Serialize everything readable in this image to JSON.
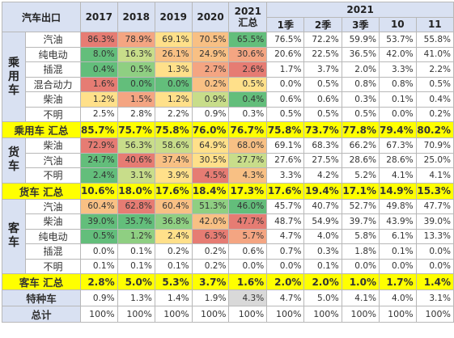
{
  "header": {
    "corner": "汽车出口",
    "years": [
      "2017",
      "2018",
      "2019",
      "2020"
    ],
    "summary_top": "2021",
    "summary_bottom": "汇总",
    "group_2021": "2021",
    "periods": [
      "1季",
      "2季",
      "3季",
      "10",
      "11"
    ]
  },
  "groups": [
    {
      "label": "乘用车",
      "rows": [
        {
          "fuel": "汽油",
          "values": [
            "86.3%",
            "78.9%",
            "69.1%",
            "70.5%",
            "65.5%",
            "76.5%",
            "72.2%",
            "59.9%",
            "53.7%",
            "55.8%"
          ],
          "colors": [
            "c-dr",
            "c-r",
            "c-y",
            "c-o",
            "c-dg"
          ]
        },
        {
          "fuel": "纯电动",
          "values": [
            "8.0%",
            "16.3%",
            "26.1%",
            "24.9%",
            "30.6%",
            "20.6%",
            "22.5%",
            "36.5%",
            "42.0%",
            "41.0%"
          ],
          "colors": [
            "c-dg",
            "c-lg",
            "c-o",
            "c-o",
            "c-r"
          ]
        },
        {
          "fuel": "插混",
          "values": [
            "0.4%",
            "0.5%",
            "1.3%",
            "2.7%",
            "2.6%",
            "1.7%",
            "3.7%",
            "2.0%",
            "3.3%",
            "2.2%"
          ],
          "colors": [
            "c-dg",
            "c-g",
            "c-y",
            "c-r",
            "c-dr"
          ]
        },
        {
          "fuel": "混合动力",
          "values": [
            "1.6%",
            "0.0%",
            "0.0%",
            "0.2%",
            "0.5%",
            "0.0%",
            "0.5%",
            "0.8%",
            "0.8%",
            "0.5%"
          ],
          "colors": [
            "c-dr",
            "c-dg",
            "c-dg",
            "c-o",
            "c-y"
          ]
        },
        {
          "fuel": "柴油",
          "values": [
            "1.2%",
            "1.5%",
            "1.2%",
            "0.9%",
            "0.4%",
            "0.6%",
            "0.6%",
            "0.3%",
            "0.1%",
            "0.4%"
          ],
          "colors": [
            "c-y",
            "c-r",
            "c-y",
            "c-lg",
            "c-dg"
          ]
        },
        {
          "fuel": "不明",
          "values": [
            "2.5%",
            "2.8%",
            "2.2%",
            "0.9%",
            "0.3%",
            "0.5%",
            "0.5%",
            "0.5%",
            "0.0%",
            "0.2%"
          ],
          "colors": [
            "",
            "",
            "",
            "",
            ""
          ]
        }
      ],
      "subtotal_label": "乘用车 汇总",
      "subtotal_values": [
        "85.7%",
        "75.7%",
        "75.8%",
        "76.0%",
        "76.7%",
        "75.8%",
        "73.7%",
        "77.8%",
        "79.4%",
        "80.2%"
      ]
    },
    {
      "label": "货车",
      "rows": [
        {
          "fuel": "柴油",
          "values": [
            "72.9%",
            "56.3%",
            "58.6%",
            "64.9%",
            "68.0%",
            "69.1%",
            "68.3%",
            "66.2%",
            "67.3%",
            "70.9%"
          ],
          "colors": [
            "c-dr",
            "c-lg",
            "c-lg",
            "c-y",
            "c-o"
          ]
        },
        {
          "fuel": "汽油",
          "values": [
            "24.7%",
            "40.6%",
            "37.4%",
            "30.5%",
            "27.7%",
            "27.6%",
            "27.5%",
            "28.6%",
            "28.6%",
            "25.0%"
          ],
          "colors": [
            "c-dg",
            "c-dr",
            "c-o",
            "c-y",
            "c-lg"
          ]
        },
        {
          "fuel": "不明",
          "values": [
            "2.4%",
            "3.1%",
            "3.9%",
            "4.5%",
            "4.3%",
            "3.3%",
            "4.2%",
            "5.2%",
            "4.1%",
            "4.1%"
          ],
          "colors": [
            "c-dg",
            "c-lg",
            "c-y",
            "c-dr",
            "c-o"
          ]
        }
      ],
      "subtotal_label": "货车 汇总",
      "subtotal_values": [
        "10.6%",
        "18.0%",
        "17.6%",
        "18.4%",
        "17.3%",
        "17.6%",
        "19.4%",
        "17.1%",
        "14.9%",
        "15.3%"
      ]
    },
    {
      "label": "客车",
      "rows": [
        {
          "fuel": "汽油",
          "values": [
            "60.4%",
            "62.8%",
            "60.4%",
            "51.3%",
            "46.0%",
            "45.7%",
            "40.7%",
            "52.7%",
            "49.8%",
            "47.7%"
          ],
          "colors": [
            "c-o",
            "c-dr",
            "c-o",
            "c-g",
            "c-dg"
          ]
        },
        {
          "fuel": "柴油",
          "values": [
            "39.0%",
            "35.7%",
            "36.8%",
            "42.0%",
            "47.7%",
            "48.7%",
            "54.9%",
            "39.7%",
            "43.9%",
            "39.0%"
          ],
          "colors": [
            "c-dg",
            "c-dg",
            "c-g",
            "c-o",
            "c-dr"
          ]
        },
        {
          "fuel": "纯电动",
          "values": [
            "0.5%",
            "1.2%",
            "2.4%",
            "6.3%",
            "5.7%",
            "4.7%",
            "4.0%",
            "5.8%",
            "6.1%",
            "13.3%"
          ],
          "colors": [
            "c-dg",
            "c-g",
            "c-y",
            "c-dr",
            "c-r"
          ]
        },
        {
          "fuel": "插混",
          "values": [
            "0.0%",
            "0.1%",
            "0.2%",
            "0.2%",
            "0.6%",
            "0.7%",
            "0.3%",
            "1.8%",
            "0.1%",
            "0.0%"
          ],
          "colors": [
            "",
            "",
            "",
            "",
            ""
          ]
        },
        {
          "fuel": "不明",
          "values": [
            "0.1%",
            "0.1%",
            "0.1%",
            "0.2%",
            "0.0%",
            "0.0%",
            "0.1%",
            "0.0%",
            "0.0%",
            "0.0%"
          ],
          "colors": [
            "",
            "",
            "",
            "",
            ""
          ]
        }
      ],
      "subtotal_label": "客车 汇总",
      "subtotal_values": [
        "2.8%",
        "5.0%",
        "5.3%",
        "3.7%",
        "1.6%",
        "2.0%",
        "2.0%",
        "1.0%",
        "1.7%",
        "1.4%"
      ]
    }
  ],
  "special": {
    "label": "特种车",
    "values": [
      "0.9%",
      "1.3%",
      "1.4%",
      "1.9%",
      "4.3%",
      "4.7%",
      "5.0%",
      "4.1%",
      "4.0%",
      "3.1%"
    ],
    "colors": [
      "",
      "",
      "",
      "",
      "c-gy"
    ]
  },
  "total": {
    "label": "总计",
    "values": [
      "100%",
      "100%",
      "100%",
      "100%",
      "100%",
      "100%",
      "100%",
      "100%",
      "100%",
      "100%"
    ]
  }
}
